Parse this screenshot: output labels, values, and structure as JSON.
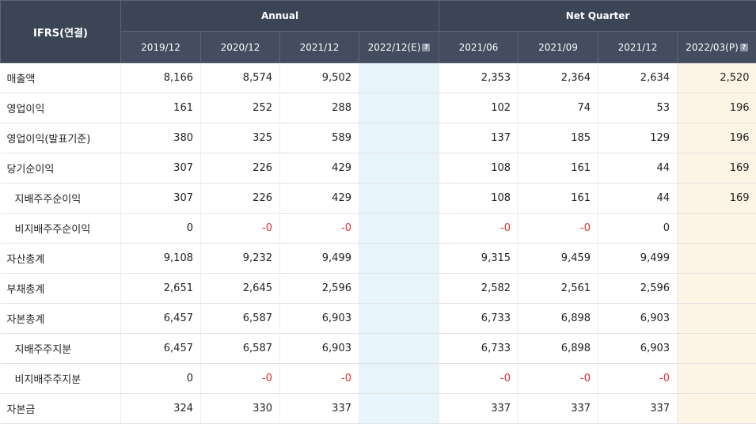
{
  "header": {
    "corner_label": "IFRS(연결)",
    "group_annual": "Annual",
    "group_quarter": "Net Quarter",
    "periods": [
      "2019/12",
      "2020/12",
      "2021/12",
      "2022/12(E)",
      "2021/06",
      "2021/09",
      "2021/12",
      "2022/03(P)"
    ],
    "help_glyph": "?"
  },
  "colors": {
    "header_bg": "#3b4556",
    "negative": "#e0302f",
    "estimate_bg": "#e8f4fb",
    "provisional_bg": "#fdf4e6"
  },
  "rows": [
    {
      "label": "매출액",
      "sub": false,
      "values": [
        "8,166",
        "8,574",
        "9,502",
        "",
        "2,353",
        "2,364",
        "2,634",
        "2,520"
      ]
    },
    {
      "label": "영업이익",
      "sub": false,
      "values": [
        "161",
        "252",
        "288",
        "",
        "102",
        "74",
        "53",
        "196"
      ]
    },
    {
      "label": "영업이익(발표기준)",
      "sub": false,
      "values": [
        "380",
        "325",
        "589",
        "",
        "137",
        "185",
        "129",
        "196"
      ]
    },
    {
      "label": "당기순이익",
      "sub": false,
      "values": [
        "307",
        "226",
        "429",
        "",
        "108",
        "161",
        "44",
        "169"
      ]
    },
    {
      "label": "지배주주순이익",
      "sub": true,
      "values": [
        "307",
        "226",
        "429",
        "",
        "108",
        "161",
        "44",
        "169"
      ]
    },
    {
      "label": "비지배주주순이익",
      "sub": true,
      "values": [
        "0",
        "-0",
        "-0",
        "",
        "-0",
        "-0",
        "0",
        ""
      ]
    },
    {
      "label": "자산총계",
      "sub": false,
      "values": [
        "9,108",
        "9,232",
        "9,499",
        "",
        "9,315",
        "9,459",
        "9,499",
        ""
      ]
    },
    {
      "label": "부채총계",
      "sub": false,
      "values": [
        "2,651",
        "2,645",
        "2,596",
        "",
        "2,582",
        "2,561",
        "2,596",
        ""
      ]
    },
    {
      "label": "자본총계",
      "sub": false,
      "values": [
        "6,457",
        "6,587",
        "6,903",
        "",
        "6,733",
        "6,898",
        "6,903",
        ""
      ]
    },
    {
      "label": "지배주주지분",
      "sub": true,
      "values": [
        "6,457",
        "6,587",
        "6,903",
        "",
        "6,733",
        "6,898",
        "6,903",
        ""
      ]
    },
    {
      "label": "비지배주주지분",
      "sub": true,
      "values": [
        "0",
        "-0",
        "-0",
        "",
        "-0",
        "-0",
        "-0",
        ""
      ]
    },
    {
      "label": "자본금",
      "sub": false,
      "values": [
        "324",
        "330",
        "337",
        "",
        "337",
        "337",
        "337",
        ""
      ]
    }
  ]
}
